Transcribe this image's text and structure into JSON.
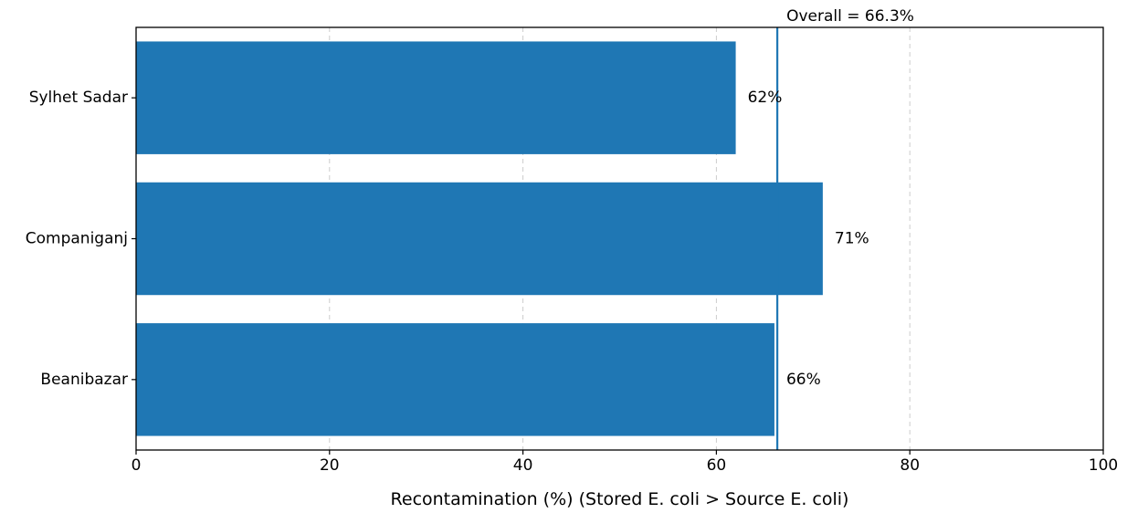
{
  "chart_data": {
    "type": "bar",
    "orientation": "horizontal",
    "categories": [
      "Sylhet Sadar",
      "Companiganj",
      "Beanibazar"
    ],
    "values": [
      62,
      71,
      66
    ],
    "value_labels": [
      "62%",
      "71%",
      "66%"
    ],
    "title": "",
    "xlabel": "Recontamination (%)  (Stored E. coli > Source E. coli)",
    "ylabel": "",
    "xlim": [
      0,
      100
    ],
    "x_ticks": [
      0,
      20,
      40,
      60,
      80,
      100
    ],
    "x_tick_labels": [
      "0",
      "20",
      "40",
      "60",
      "80",
      "100"
    ],
    "grid": "vertical dashed",
    "reference_line": {
      "value": 66.3,
      "label": "Overall = 66.3%"
    },
    "colors": {
      "bar": "#1f77b4",
      "reference_line": "#1f77b4",
      "grid": "#cccccc",
      "axis": "#000000"
    }
  }
}
